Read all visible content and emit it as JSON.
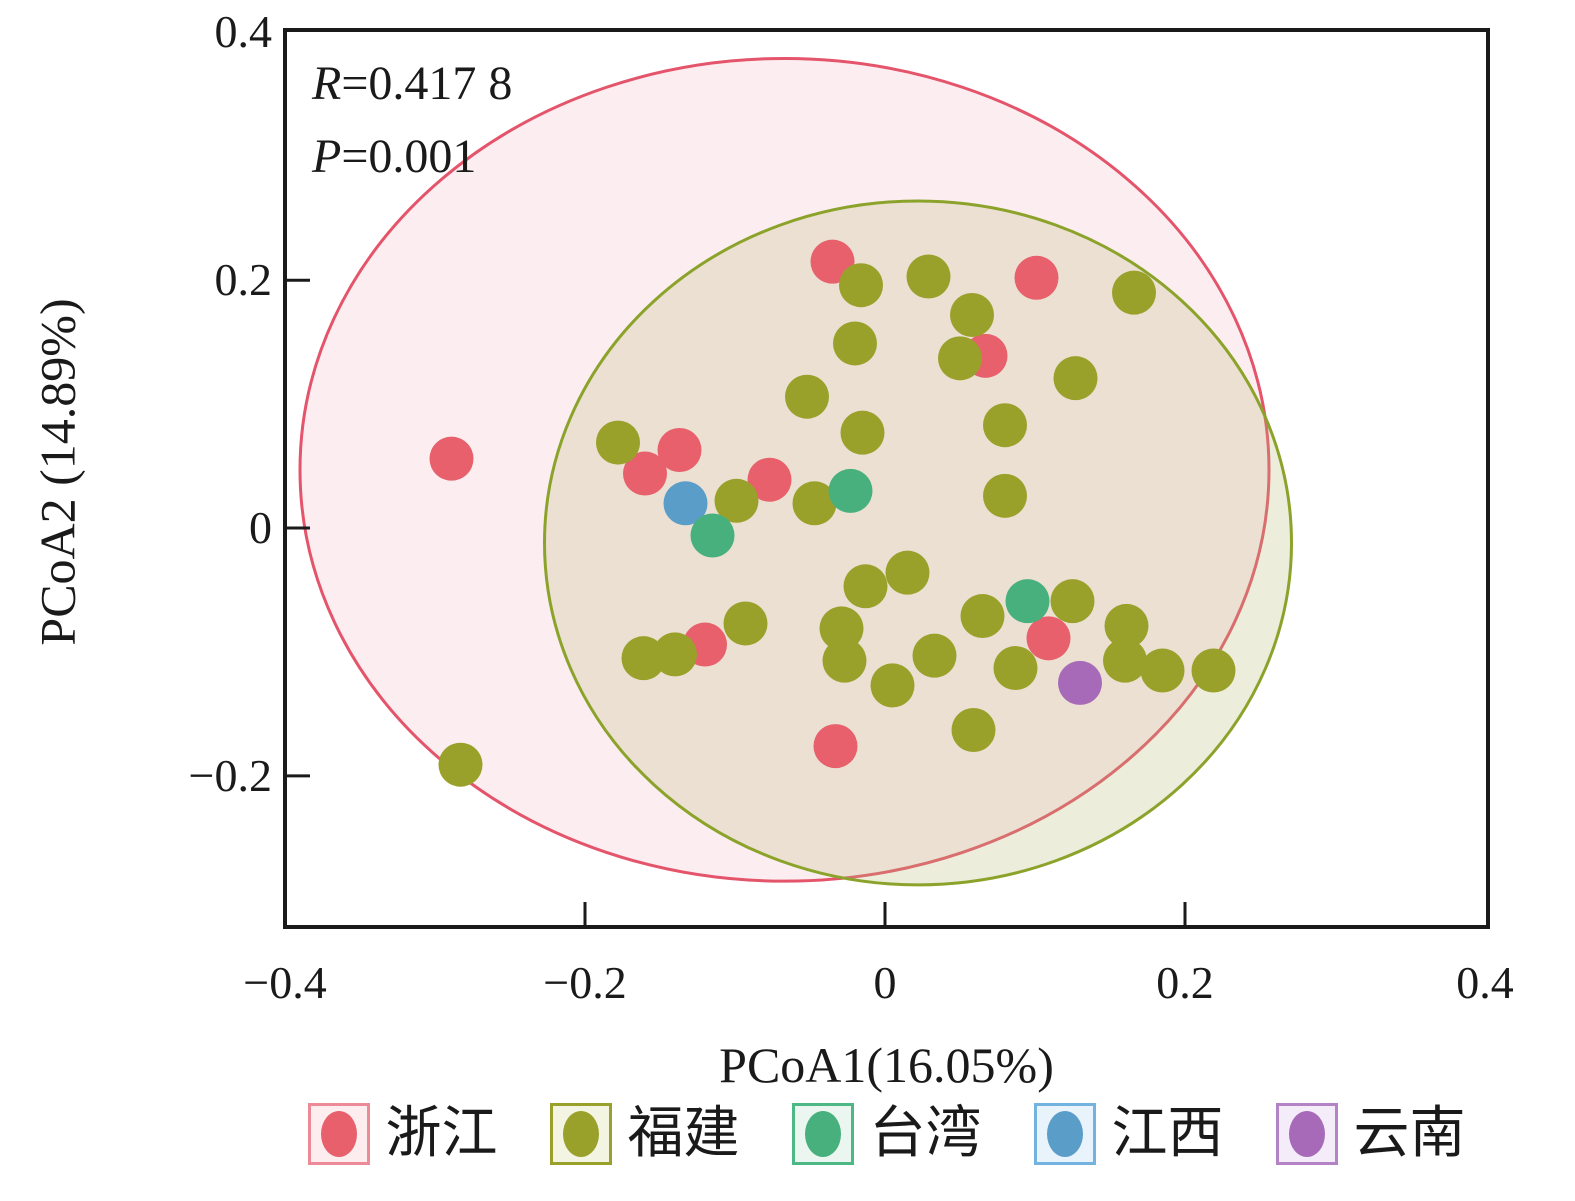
{
  "annotation": {
    "line1": "R=0.417 8",
    "line2": "P=0.001"
  },
  "axes": {
    "x_label": "PCoA1(16.05%)",
    "y_label": "PCoA2 (14.89%)",
    "x_ticks": [
      {
        "value": -0.4,
        "label": "−0.4",
        "mark": false
      },
      {
        "value": -0.2,
        "label": "−0.2",
        "mark": true
      },
      {
        "value": 0,
        "label": "0",
        "mark": true
      },
      {
        "value": 0.2,
        "label": "0.2",
        "mark": true
      },
      {
        "value": 0.4,
        "label": "0.4",
        "mark": false
      }
    ],
    "y_ticks": [
      {
        "value": 0.4,
        "label": "0.4",
        "mark": false
      },
      {
        "value": 0.2,
        "label": "0.2",
        "mark": true
      },
      {
        "value": 0,
        "label": "0",
        "mark": true
      },
      {
        "value": -0.2,
        "label": "−0.2",
        "mark": true
      }
    ]
  },
  "chart_data": {
    "type": "scatter",
    "title": "",
    "xlabel": "PCoA1(16.05%)",
    "ylabel": "PCoA2 (14.89%)",
    "xlim": [
      -0.4,
      0.402
    ],
    "ylim": [
      -0.322,
      0.402
    ],
    "grid": false,
    "legend_position": "bottom",
    "annotations": [
      "R=0.417 8",
      "P=0.001"
    ],
    "marker_radius_px": 22,
    "frame_color": "#1a1a1a",
    "draw_order": [
      "zhejiang",
      "fujian",
      "jiangxi",
      "taiwan",
      "yunnan"
    ],
    "series": [
      {
        "key": "zhejiang",
        "name": "浙江",
        "color": "#e7606c",
        "points": [
          [
            -0.035,
            0.215
          ],
          [
            0.101,
            0.202
          ],
          [
            0.067,
            0.139
          ],
          [
            -0.289,
            0.056
          ],
          [
            -0.137,
            0.063
          ],
          [
            -0.16,
            0.044
          ],
          [
            -0.077,
            0.039
          ],
          [
            0.109,
            -0.089
          ],
          [
            -0.12,
            -0.094
          ],
          [
            -0.033,
            -0.176
          ]
        ]
      },
      {
        "key": "fujian",
        "name": "福建",
        "color": "#9aa12b",
        "points": [
          [
            -0.016,
            0.196
          ],
          [
            0.029,
            0.203
          ],
          [
            0.166,
            0.19
          ],
          [
            0.058,
            0.172
          ],
          [
            -0.02,
            0.149
          ],
          [
            0.05,
            0.137
          ],
          [
            0.127,
            0.121
          ],
          [
            -0.052,
            0.106
          ],
          [
            0.08,
            0.083
          ],
          [
            -0.015,
            0.077
          ],
          [
            -0.178,
            0.069
          ],
          [
            -0.099,
            0.022
          ],
          [
            -0.047,
            0.02
          ],
          [
            0.08,
            0.026
          ],
          [
            -0.013,
            -0.047
          ],
          [
            0.015,
            -0.036
          ],
          [
            -0.093,
            -0.077
          ],
          [
            -0.161,
            -0.105
          ],
          [
            -0.14,
            -0.102
          ],
          [
            -0.029,
            -0.081
          ],
          [
            -0.027,
            -0.107
          ],
          [
            0.005,
            -0.127
          ],
          [
            0.033,
            -0.103
          ],
          [
            0.065,
            -0.071
          ],
          [
            0.125,
            -0.059
          ],
          [
            0.087,
            -0.113
          ],
          [
            0.161,
            -0.079
          ],
          [
            0.16,
            -0.107
          ],
          [
            0.185,
            -0.115
          ],
          [
            0.219,
            -0.115
          ],
          [
            0.059,
            -0.163
          ],
          [
            -0.283,
            -0.191
          ]
        ]
      },
      {
        "key": "taiwan",
        "name": "台湾",
        "color": "#47b07d",
        "points": [
          [
            -0.023,
            0.03
          ],
          [
            -0.115,
            -0.006
          ],
          [
            0.095,
            -0.059
          ]
        ]
      },
      {
        "key": "jiangxi",
        "name": "江西",
        "color": "#5b9dc9",
        "points": [
          [
            -0.133,
            0.02
          ]
        ]
      },
      {
        "key": "yunnan",
        "name": "云南",
        "color": "#a76ab8",
        "points": [
          [
            0.13,
            -0.125
          ]
        ]
      }
    ],
    "ellipses": [
      {
        "series": "zhejiang",
        "cx": -0.067,
        "cy": 0.047,
        "rx": 0.323,
        "ry": 0.332,
        "stroke": "#e4546b",
        "fill": "rgba(240,168,180,0.20)"
      },
      {
        "series": "fujian",
        "cx": 0.022,
        "cy": -0.012,
        "rx": 0.249,
        "ry": 0.276,
        "stroke": "#8ca32b",
        "fill": "rgba(186,186,120,0.26)"
      }
    ]
  },
  "legend": {
    "items": [
      {
        "key": "zhejiang",
        "label": "浙江",
        "dot": "#e7606c",
        "box_border": "#ec8a97",
        "box_bg": "#fdedef"
      },
      {
        "key": "fujian",
        "label": "福建",
        "dot": "#9aa12b",
        "box_border": "#9aa12b",
        "box_bg": "#f4f4e3"
      },
      {
        "key": "taiwan",
        "label": "台湾",
        "dot": "#47b07d",
        "box_border": "#4db885",
        "box_bg": "#eaf6ef"
      },
      {
        "key": "jiangxi",
        "label": "江西",
        "dot": "#5b9dc9",
        "box_border": "#74b3e0",
        "box_bg": "#e9f3fb"
      },
      {
        "key": "yunnan",
        "label": "云南",
        "dot": "#a76ab8",
        "box_border": "#b383c6",
        "box_bg": "#f4ecf8"
      }
    ]
  }
}
